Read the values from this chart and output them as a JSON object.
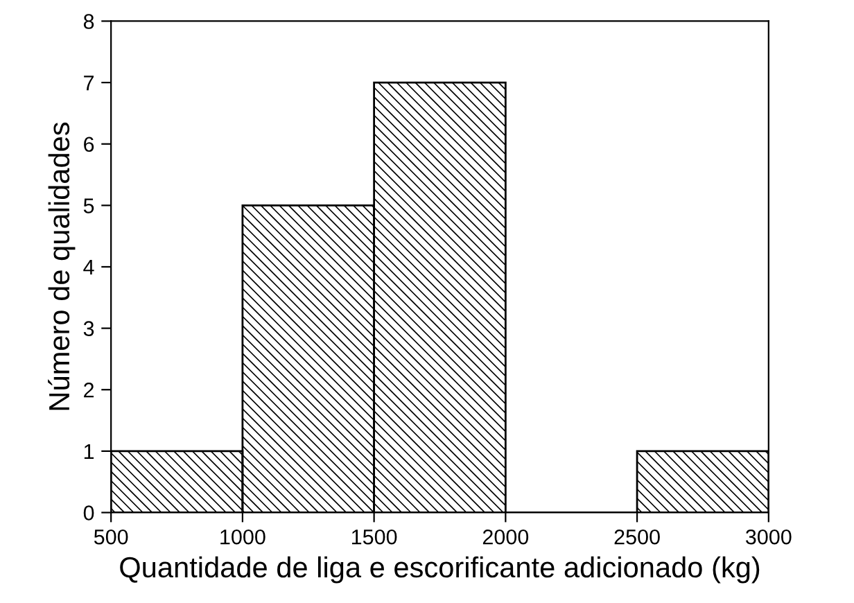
{
  "chart_data": {
    "type": "histogram",
    "xlabel": "Quantidade de liga e escorificante adicionado (kg)",
    "ylabel": "Número de qualidades",
    "bins": [
      500,
      1000,
      1500,
      2000,
      2500,
      3000
    ],
    "values": [
      1,
      5,
      7,
      0,
      1
    ],
    "color": "#000000",
    "xlim": [
      500,
      3000
    ],
    "xticks": [
      500,
      1000,
      1500,
      2000,
      2500,
      3000
    ],
    "ylim": [
      0,
      8
    ],
    "yticks": [
      0,
      1,
      2,
      3,
      4,
      5,
      6,
      7,
      8
    ],
    "grid": false,
    "legend": false
  }
}
